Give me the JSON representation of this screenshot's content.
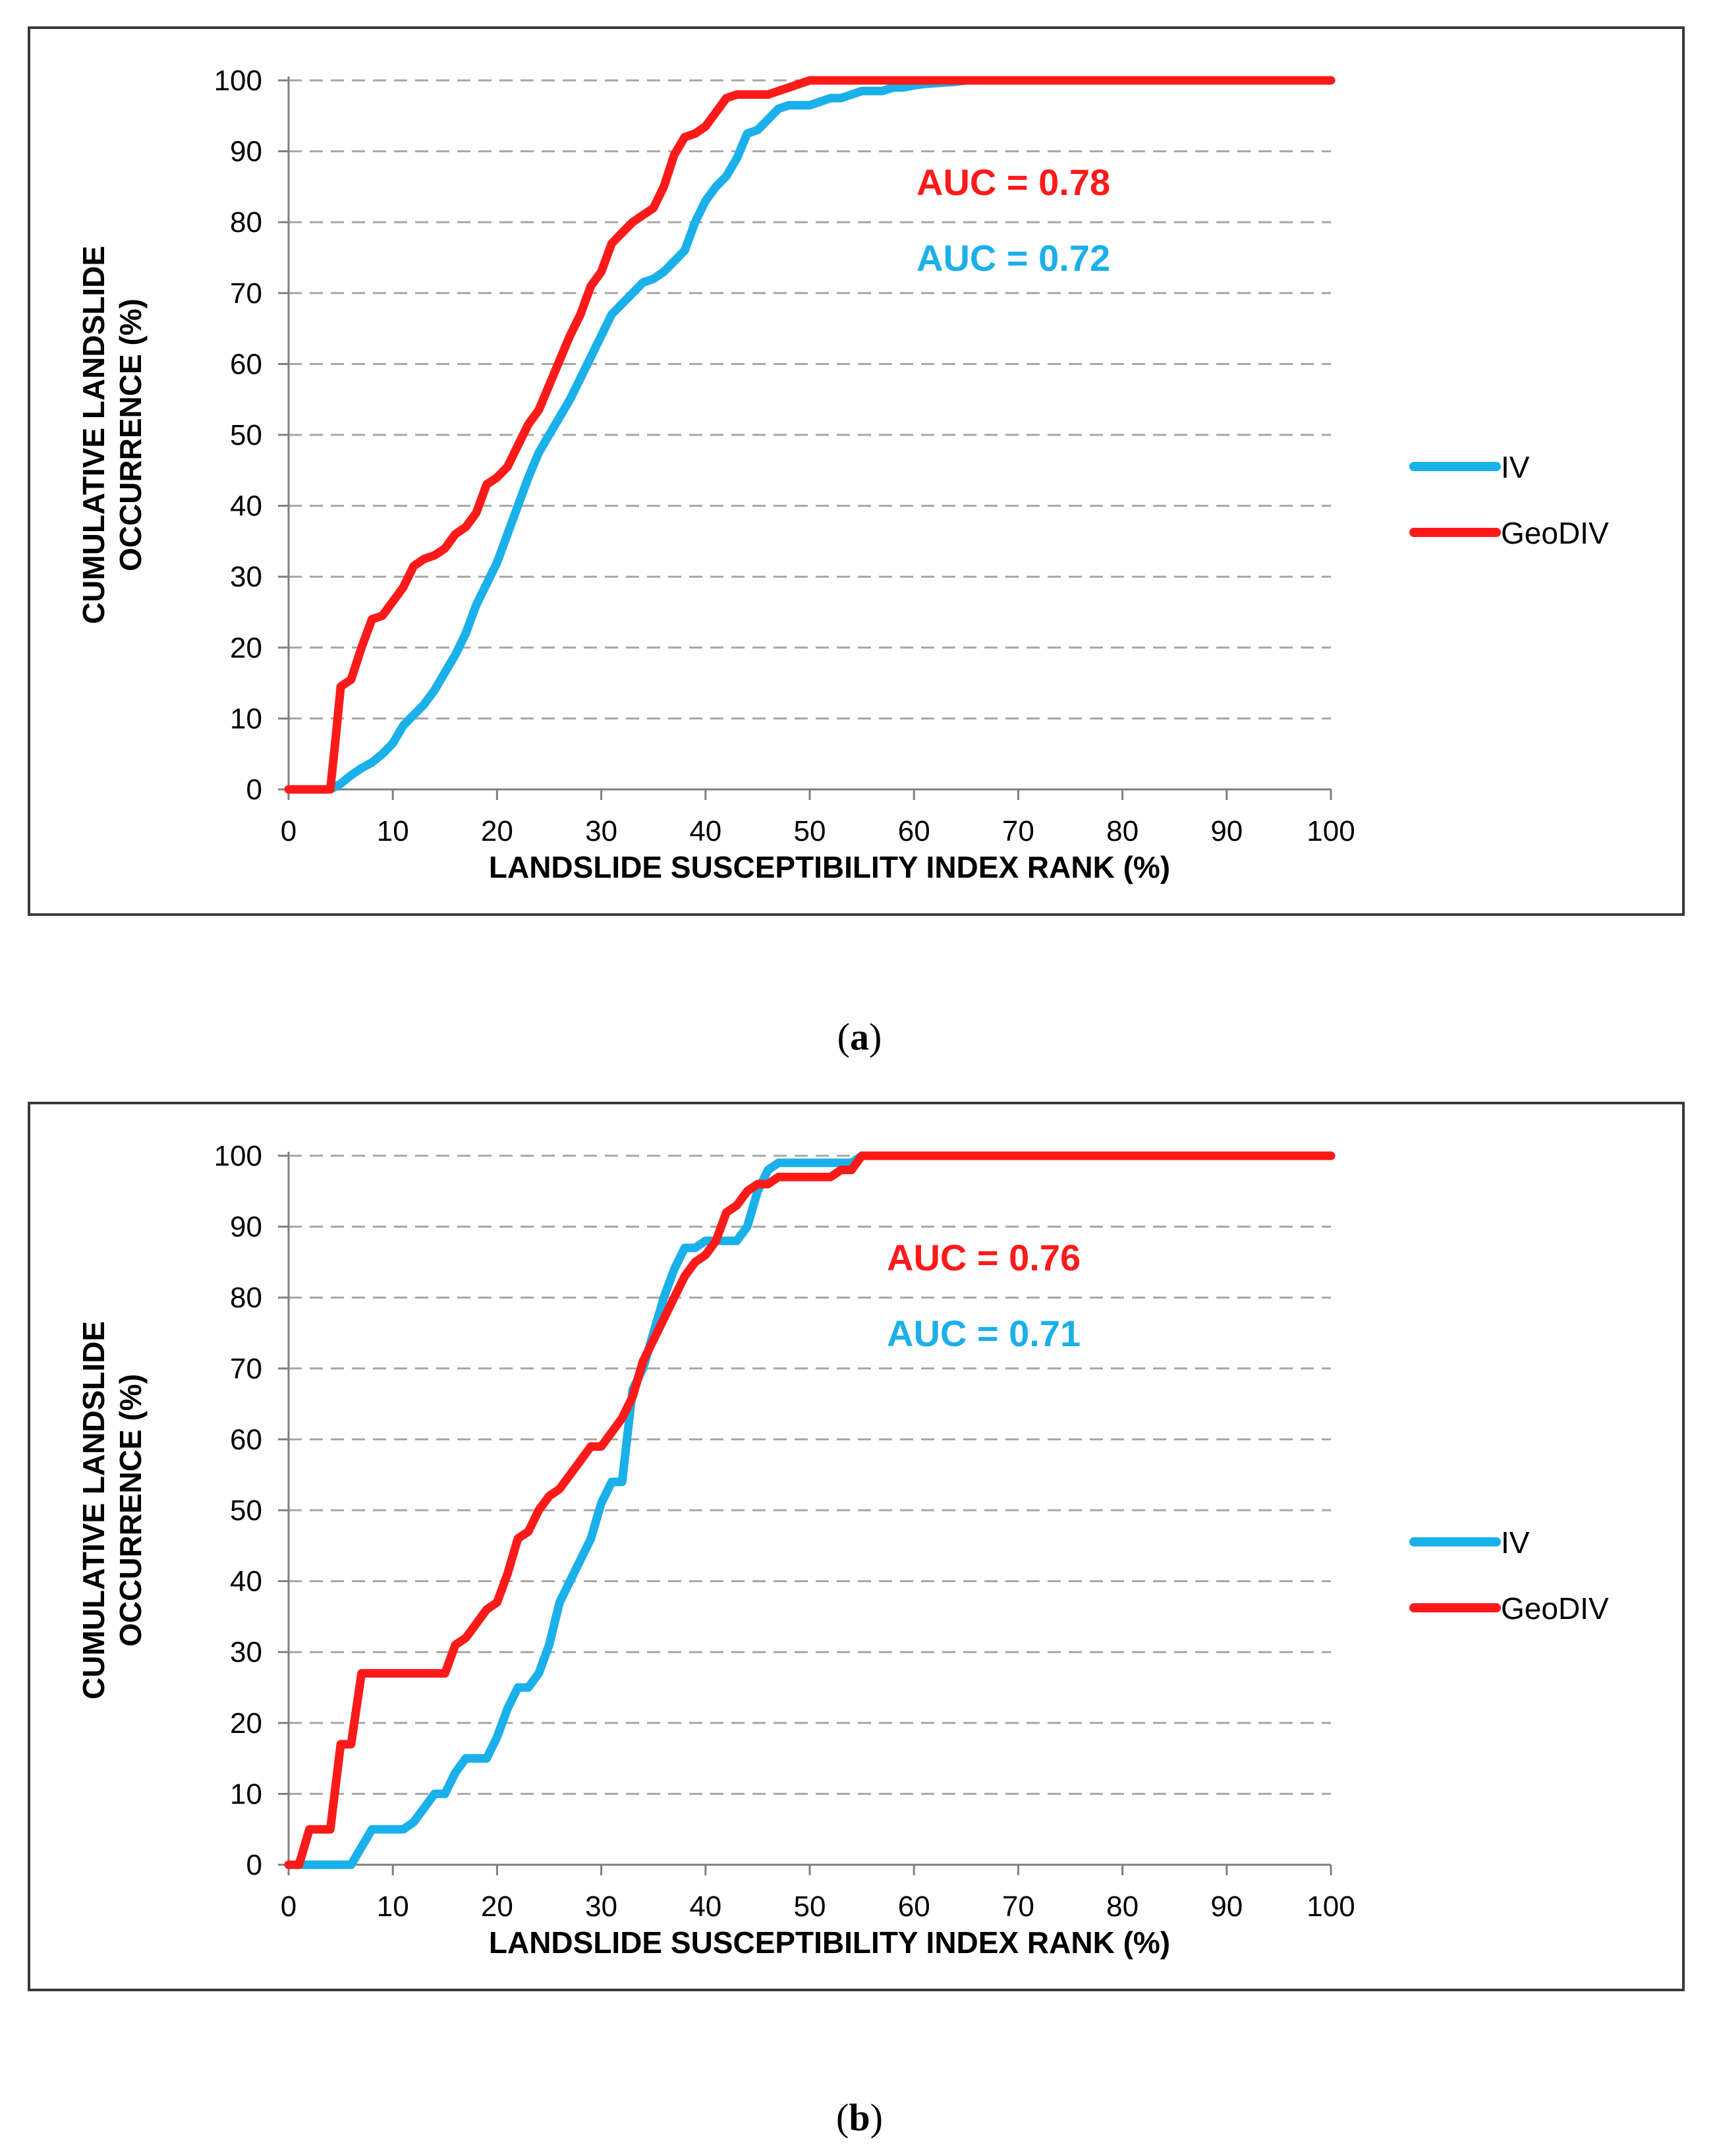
{
  "chart_data": [
    {
      "type": "line",
      "panel": "a",
      "xlabel": "LANDSLIDE SUSCEPTIBILITY INDEX RANK  (%)",
      "ylabel_lines": [
        "CUMULATIVE LANDSLIDE",
        "OCCURRENCE (%)"
      ],
      "xlim": [
        0,
        100
      ],
      "ylim": [
        0,
        100
      ],
      "xticks": [
        "0",
        "10",
        "20",
        "30",
        "40",
        "50",
        "60",
        "70",
        "80",
        "90",
        "100"
      ],
      "yticks": [
        "0",
        "10",
        "20",
        "30",
        "40",
        "50",
        "60",
        "70",
        "80",
        "90",
        "100"
      ],
      "grid": "horizontal dashed",
      "legend_position": "right",
      "annotations": [
        {
          "text": "AUC = 0.78",
          "color": "#ff1a1a"
        },
        {
          "text": "AUC = 0.72",
          "color": "#1ab0ea"
        }
      ],
      "series": [
        {
          "name": "IV",
          "color": "#1ab0ea",
          "x": [
            0,
            4,
            5,
            6,
            7,
            8,
            9,
            10,
            11,
            12,
            13,
            14,
            15,
            16,
            17,
            18,
            19,
            20,
            21,
            22,
            23,
            24,
            25,
            26,
            27,
            28,
            29,
            30,
            31,
            32,
            33,
            34,
            35,
            36,
            37,
            38,
            39,
            40,
            41,
            42,
            43,
            44,
            45,
            46,
            47,
            48,
            49,
            50,
            51,
            52,
            53,
            54,
            55,
            56,
            57,
            58,
            59,
            60,
            61,
            62,
            63,
            64,
            65,
            100
          ],
          "y": [
            0,
            0,
            0.8,
            2,
            3,
            3.8,
            5,
            6.5,
            9,
            10.5,
            12,
            14,
            16.5,
            19,
            22,
            26,
            29,
            32,
            36,
            40,
            44,
            47.5,
            50,
            52.5,
            55,
            58,
            61,
            64,
            67,
            68.5,
            70,
            71.5,
            72,
            73,
            74.5,
            76,
            80,
            83,
            85,
            86.5,
            89,
            92.5,
            93,
            94.5,
            96,
            96.5,
            96.5,
            96.5,
            97,
            97.5,
            97.5,
            98,
            98.5,
            98.5,
            98.5,
            99,
            99,
            99.3,
            99.5,
            99.6,
            99.7,
            99.8,
            100,
            100
          ]
        },
        {
          "name": "GeoDIV",
          "color": "#ff1a1a",
          "x": [
            0,
            4,
            4.5,
            5,
            6,
            7,
            8,
            9,
            10,
            11,
            12,
            13,
            14,
            15,
            16,
            17,
            18,
            19,
            20,
            21,
            22,
            23,
            24,
            25,
            26,
            27,
            28,
            29,
            30,
            31,
            32,
            33,
            34,
            35,
            36,
            37,
            38,
            39,
            40,
            41,
            42,
            43,
            44,
            45,
            46,
            47,
            48,
            49,
            50,
            51,
            52,
            100
          ],
          "y": [
            0,
            0,
            7,
            14.5,
            15.5,
            20,
            24,
            24.5,
            26.5,
            28.5,
            31.5,
            32.5,
            33,
            34,
            36,
            37,
            39,
            43,
            44,
            45.5,
            48.5,
            51.5,
            53.5,
            57,
            60.5,
            64,
            67,
            71,
            73,
            77,
            78.5,
            80,
            81,
            82,
            85,
            89.5,
            92,
            92.5,
            93.5,
            95.5,
            97.5,
            98,
            98,
            98,
            98,
            98.5,
            99,
            99.5,
            100,
            100,
            100,
            100
          ]
        }
      ]
    },
    {
      "type": "line",
      "panel": "b",
      "xlabel": "LANDSLIDE SUSCEPTIBILITY INDEX RANK  (%)",
      "ylabel_lines": [
        "CUMULATIVE LANDSLIDE",
        "OCCURRENCE (%)"
      ],
      "xlim": [
        0,
        100
      ],
      "ylim": [
        0,
        100
      ],
      "xticks": [
        "0",
        "10",
        "20",
        "30",
        "40",
        "50",
        "60",
        "70",
        "80",
        "90",
        "100"
      ],
      "yticks": [
        "0",
        "10",
        "20",
        "30",
        "40",
        "50",
        "60",
        "70",
        "80",
        "90",
        "100"
      ],
      "grid": "horizontal dashed",
      "legend_position": "right",
      "annotations": [
        {
          "text": "AUC = 0.76",
          "color": "#ff1a1a"
        },
        {
          "text": "AUC = 0.71",
          "color": "#1ab0ea"
        }
      ],
      "series": [
        {
          "name": "IV",
          "color": "#1ab0ea",
          "x": [
            0,
            6,
            7,
            8,
            9,
            10,
            11,
            12,
            13,
            14,
            15,
            16,
            17,
            18,
            19,
            20,
            21,
            22,
            23,
            24,
            25,
            26,
            27,
            28,
            29,
            30,
            31,
            32,
            33,
            34,
            35,
            36,
            37,
            38,
            39,
            40,
            41,
            42,
            43,
            44,
            45,
            46,
            47,
            48,
            54,
            55,
            100
          ],
          "y": [
            0,
            0,
            2.5,
            5,
            5,
            5,
            5,
            6,
            8,
            10,
            10,
            13,
            15,
            15,
            15,
            18,
            22,
            25,
            25,
            27,
            31,
            37,
            40,
            43,
            46,
            51,
            54,
            54,
            67,
            70,
            75,
            80,
            84,
            87,
            87,
            88,
            88,
            88,
            88,
            90,
            95,
            98,
            99,
            99,
            99,
            100,
            100
          ]
        },
        {
          "name": "GeoDIV",
          "color": "#ff1a1a",
          "x": [
            0,
            1,
            2,
            3,
            4,
            5,
            6,
            7,
            8,
            9,
            10,
            11,
            12,
            13,
            14,
            15,
            16,
            17,
            18,
            19,
            20,
            21,
            22,
            23,
            24,
            25,
            26,
            27,
            28,
            29,
            30,
            31,
            32,
            33,
            34,
            35,
            36,
            37,
            38,
            39,
            40,
            41,
            42,
            43,
            44,
            45,
            46,
            47,
            48,
            49,
            50,
            51,
            52,
            53,
            54,
            55,
            56,
            100
          ],
          "y": [
            0,
            0,
            5,
            5,
            5,
            17,
            17,
            27,
            27,
            27,
            27,
            27,
            27,
            27,
            27,
            27,
            31,
            32,
            34,
            36,
            37,
            41,
            46,
            47,
            50,
            52,
            53,
            55,
            57,
            59,
            59,
            61,
            63,
            66,
            71,
            74,
            77,
            80,
            83,
            85,
            86,
            88,
            92,
            93,
            95,
            96,
            96,
            97,
            97,
            97,
            97,
            97,
            97,
            98,
            98,
            100,
            100,
            100
          ]
        }
      ]
    }
  ],
  "captions": {
    "a": "a",
    "b": "b"
  }
}
